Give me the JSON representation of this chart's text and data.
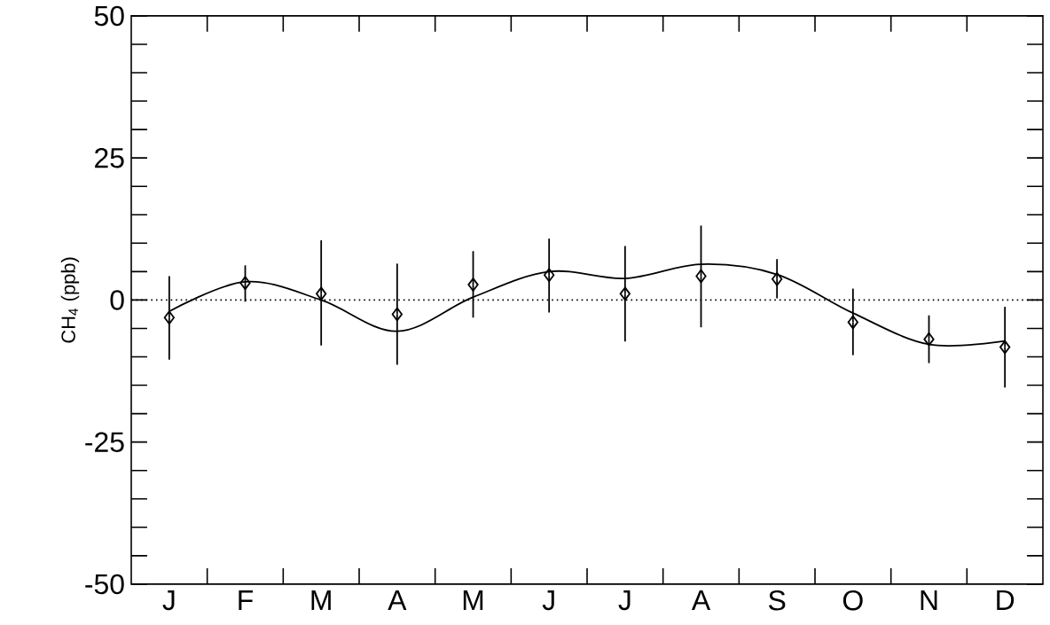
{
  "chart_data": {
    "type": "scatter",
    "ylabel": "CH$_{4}$ (ppb)",
    "categories": [
      "J",
      "F",
      "M",
      "A",
      "M",
      "J",
      "J",
      "A",
      "S",
      "O",
      "N",
      "D"
    ],
    "ylim": [
      -50,
      50
    ],
    "yticks": [
      -50,
      -25,
      0,
      25,
      50
    ],
    "ref_lines": [
      {
        "axis": "y",
        "value": 0,
        "line_style": "dotted",
        "color": "#000000"
      }
    ],
    "series": [
      {
        "type": "scatter",
        "marker": "diamond",
        "color": "#000000",
        "values": [
          -3.1,
          3.0,
          1.1,
          -2.5,
          2.7,
          4.4,
          1.1,
          4.2,
          3.7,
          -3.9,
          -6.9,
          -8.3
        ],
        "errors": [
          [
            -10.5,
            4.2
          ],
          [
            -0.3,
            6.1
          ],
          [
            -8.0,
            10.5
          ],
          [
            -11.4,
            6.4
          ],
          [
            -3.1,
            8.6
          ],
          [
            -2.2,
            10.8
          ],
          [
            -7.3,
            9.5
          ],
          [
            -4.8,
            13.1
          ],
          [
            0.3,
            7.2
          ],
          [
            -9.7,
            2.0
          ],
          [
            -11.1,
            -2.7
          ],
          [
            -15.4,
            -1.2
          ]
        ]
      },
      {
        "type": "line",
        "marker": "none",
        "line_style": "solid",
        "color": "#000000",
        "values": [
          -2.0,
          3.2,
          0,
          -5.5,
          0.5,
          5.0,
          3.8,
          6.3,
          4.5,
          -2.3,
          -7.8,
          -7.2
        ]
      }
    ]
  }
}
